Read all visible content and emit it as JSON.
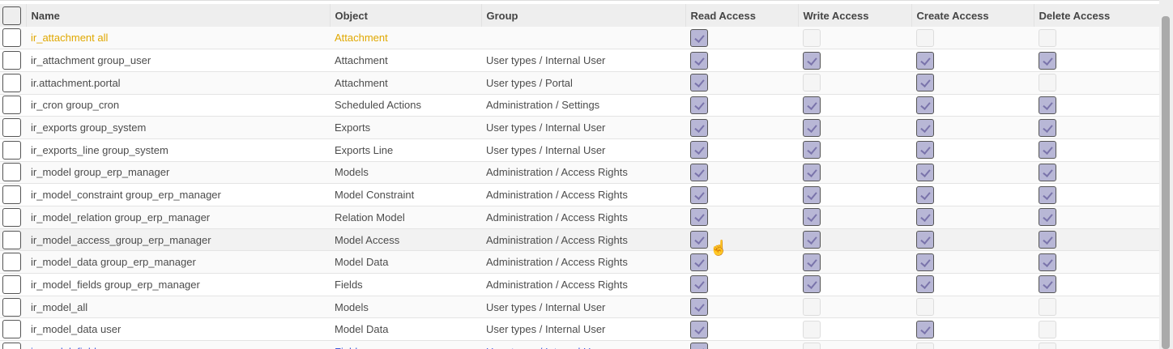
{
  "columns": [
    "Name",
    "Object",
    "Group",
    "Read Access",
    "Write Access",
    "Create Access",
    "Delete Access"
  ],
  "rows": [
    {
      "name": "ir_attachment all",
      "object": "Attachment",
      "group": "",
      "access": [
        1,
        0,
        0,
        0
      ]
    },
    {
      "name": "ir_attachment group_user",
      "object": "Attachment",
      "group": "User types / Internal User",
      "access": [
        1,
        1,
        1,
        1
      ]
    },
    {
      "name": "ir.attachment.portal",
      "object": "Attachment",
      "group": "User types / Portal",
      "access": [
        1,
        0,
        1,
        0
      ]
    },
    {
      "name": "ir_cron group_cron",
      "object": "Scheduled Actions",
      "group": "Administration / Settings",
      "access": [
        1,
        1,
        1,
        1
      ]
    },
    {
      "name": "ir_exports group_system",
      "object": "Exports",
      "group": "User types / Internal User",
      "access": [
        1,
        1,
        1,
        1
      ]
    },
    {
      "name": "ir_exports_line group_system",
      "object": "Exports Line",
      "group": "User types / Internal User",
      "access": [
        1,
        1,
        1,
        1
      ]
    },
    {
      "name": "ir_model group_erp_manager",
      "object": "Models",
      "group": "Administration / Access Rights",
      "access": [
        1,
        1,
        1,
        1
      ]
    },
    {
      "name": "ir_model_constraint group_erp_manager",
      "object": "Model Constraint",
      "group": "Administration / Access Rights",
      "access": [
        1,
        1,
        1,
        1
      ]
    },
    {
      "name": "ir_model_relation group_erp_manager",
      "object": "Relation Model",
      "group": "Administration / Access Rights",
      "access": [
        1,
        1,
        1,
        1
      ]
    },
    {
      "name": "ir_model_access_group_erp_manager",
      "object": "Model Access",
      "group": "Administration / Access Rights",
      "access": [
        1,
        1,
        1,
        1
      ]
    },
    {
      "name": "ir_model_data group_erp_manager",
      "object": "Model Data",
      "group": "Administration / Access Rights",
      "access": [
        1,
        1,
        1,
        1
      ]
    },
    {
      "name": "ir_model_fields group_erp_manager",
      "object": "Fields",
      "group": "Administration / Access Rights",
      "access": [
        1,
        1,
        1,
        1
      ]
    },
    {
      "name": "ir_model_all",
      "object": "Models",
      "group": "User types / Internal User",
      "access": [
        1,
        0,
        0,
        0
      ]
    },
    {
      "name": "ir_model_data user",
      "object": "Model Data",
      "group": "User types / Internal User",
      "access": [
        1,
        0,
        1,
        0
      ]
    },
    {
      "name": "ir_model_fields user",
      "object": "Fields",
      "group": "User types / Internal User",
      "access": [
        1,
        0,
        0,
        0
      ]
    }
  ],
  "hover_row": 9,
  "colors": {
    "highlight_text": "#e0a800",
    "checked_fill": "#b8b7d6"
  }
}
